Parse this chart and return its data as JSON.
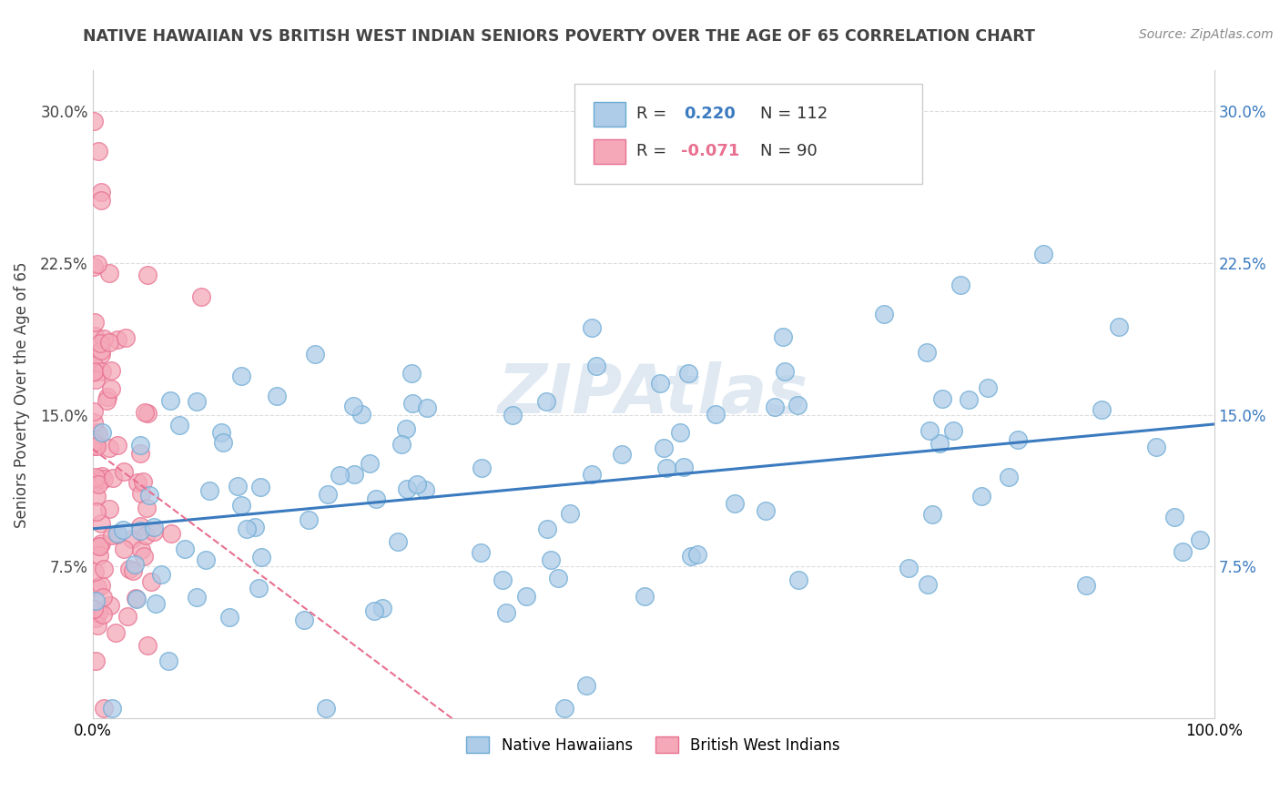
{
  "title": "NATIVE HAWAIIAN VS BRITISH WEST INDIAN SENIORS POVERTY OVER THE AGE OF 65 CORRELATION CHART",
  "source": "Source: ZipAtlas.com",
  "ylabel": "Seniors Poverty Over the Age of 65",
  "xlim": [
    0,
    1
  ],
  "ylim": [
    0,
    0.32
  ],
  "ytick_vals": [
    0,
    0.075,
    0.15,
    0.225,
    0.3
  ],
  "r_hawaiian": 0.22,
  "n_hawaiian": 112,
  "r_westindian": -0.071,
  "n_westindian": 90,
  "legend_label_hawaiian": "Native Hawaiians",
  "legend_label_westindian": "British West Indians",
  "color_hawaiian": "#aecce8",
  "color_westindian": "#f4a8b8",
  "edge_hawaiian": "#6aaad4",
  "edge_westindian": "#e87090",
  "line_color_hawaiian": "#3a7abf",
  "line_color_westindian": "#e87090",
  "watermark": "ZIPAtlas",
  "title_color": "#444444",
  "source_color": "#888888",
  "grid_color": "#dddddd",
  "right_tick_color": "#3a7abf"
}
